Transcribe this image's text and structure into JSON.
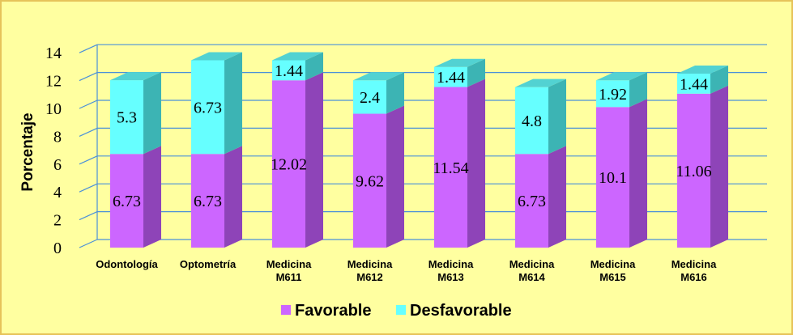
{
  "chart_data": {
    "type": "bar",
    "stacked": true,
    "three_d": true,
    "categories": [
      [
        "Odontología"
      ],
      [
        "Optometría"
      ],
      [
        "Medicina",
        "M611"
      ],
      [
        "Medicina",
        "M612"
      ],
      [
        "Medicina",
        "M613"
      ],
      [
        "Medicina",
        "M614"
      ],
      [
        "Medicina",
        "M615"
      ],
      [
        "Medicina",
        "M616"
      ]
    ],
    "series": [
      {
        "name": "Favorable",
        "values": [
          6.73,
          6.73,
          12.02,
          9.62,
          11.54,
          6.73,
          10.1,
          11.06
        ],
        "color": "#cc66ff",
        "color_side": "#8e44b8",
        "color_top": "#b152e0"
      },
      {
        "name": "Desfavorable",
        "values": [
          5.3,
          6.73,
          1.44,
          2.4,
          1.44,
          4.8,
          1.92,
          1.44
        ],
        "color": "#66ffff",
        "color_side": "#3cb4b4",
        "color_top": "#52d2d2"
      }
    ],
    "value_labels": [
      [
        "6.73",
        "6.73",
        "12.02",
        "9.62",
        "11.54",
        "6.73",
        "10.1",
        "11.06"
      ],
      [
        "5.3",
        "6.73",
        "1.44",
        "2.4",
        "1.44",
        "4.8",
        "1.92",
        "1.44"
      ]
    ],
    "ylabel": "Porcentaje",
    "xlabel": "",
    "ylim": [
      0,
      14
    ],
    "yticks": [
      0,
      2,
      4,
      6,
      8,
      10,
      12,
      14
    ],
    "grid": true,
    "grid_color": "#4a90d9",
    "legend_position": "bottom"
  }
}
